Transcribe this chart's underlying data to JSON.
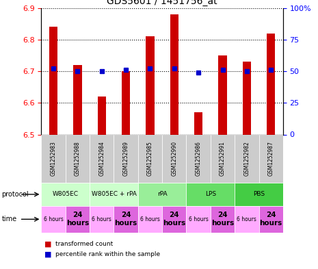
{
  "title": "GDS5601 / 1451756_at",
  "samples": [
    "GSM1252983",
    "GSM1252988",
    "GSM1252984",
    "GSM1252989",
    "GSM1252985",
    "GSM1252990",
    "GSM1252986",
    "GSM1252991",
    "GSM1252982",
    "GSM1252987"
  ],
  "transformed_counts": [
    6.84,
    6.72,
    6.62,
    6.7,
    6.81,
    6.88,
    6.57,
    6.75,
    6.73,
    6.82
  ],
  "percentile_ranks": [
    52,
    50,
    50,
    51,
    52,
    52,
    49,
    51,
    50,
    51
  ],
  "ylim_left": [
    6.5,
    6.9
  ],
  "ylim_right": [
    0,
    100
  ],
  "yticks_left": [
    6.5,
    6.6,
    6.7,
    6.8,
    6.9
  ],
  "yticks_right": [
    0,
    25,
    50,
    75,
    100
  ],
  "protocols": [
    {
      "label": "W805EC",
      "start": 0,
      "end": 2,
      "color": "#ccffcc"
    },
    {
      "label": "W805EC + rPA",
      "start": 2,
      "end": 4,
      "color": "#ccffcc"
    },
    {
      "label": "rPA",
      "start": 4,
      "end": 6,
      "color": "#99ee99"
    },
    {
      "label": "LPS",
      "start": 6,
      "end": 8,
      "color": "#66dd66"
    },
    {
      "label": "PBS",
      "start": 8,
      "end": 10,
      "color": "#44cc44"
    }
  ],
  "times": [
    {
      "label": "6 hours",
      "idx": 0,
      "color": "#ffaaff"
    },
    {
      "label": "24\nhours",
      "idx": 1,
      "color": "#dd66dd"
    },
    {
      "label": "6 hours",
      "idx": 2,
      "color": "#ffaaff"
    },
    {
      "label": "24\nhours",
      "idx": 3,
      "color": "#dd66dd"
    },
    {
      "label": "6 hours",
      "idx": 4,
      "color": "#ffaaff"
    },
    {
      "label": "24\nhours",
      "idx": 5,
      "color": "#dd66dd"
    },
    {
      "label": "6 hours",
      "idx": 6,
      "color": "#ffaaff"
    },
    {
      "label": "24\nhours",
      "idx": 7,
      "color": "#dd66dd"
    },
    {
      "label": "6 hours",
      "idx": 8,
      "color": "#ffaaff"
    },
    {
      "label": "24\nhours",
      "idx": 9,
      "color": "#dd66dd"
    }
  ],
  "bar_color": "#cc0000",
  "dot_color": "#0000cc",
  "sample_bg_color": "#cccccc",
  "legend_bar_color": "#cc0000",
  "legend_dot_color": "#0000cc"
}
